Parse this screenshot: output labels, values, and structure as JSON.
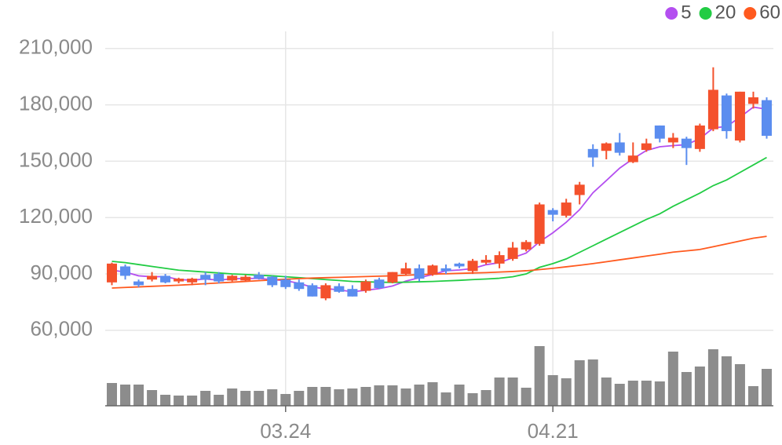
{
  "chart_data": {
    "type": "candlestick",
    "categories": [
      null,
      null,
      null,
      null,
      null,
      null,
      null,
      null,
      null,
      null,
      null,
      null,
      null,
      "03.24",
      null,
      null,
      null,
      null,
      null,
      null,
      null,
      null,
      null,
      null,
      null,
      null,
      null,
      null,
      null,
      null,
      null,
      null,
      null,
      "04.21",
      null,
      null,
      null,
      null,
      null,
      null,
      null,
      null,
      null,
      null,
      null,
      null,
      null,
      null,
      null,
      null
    ],
    "open": [
      85500,
      94000,
      86000,
      87000,
      89000,
      86000,
      85500,
      89500,
      90000,
      86500,
      86500,
      89500,
      88500,
      87000,
      85500,
      84000,
      77000,
      83500,
      82000,
      81000,
      87000,
      85500,
      90000,
      93000,
      89500,
      93000,
      95500,
      91500,
      96000,
      95500,
      98000,
      103000,
      106000,
      124000,
      121000,
      132000,
      156500,
      155500,
      160000,
      149500,
      156000,
      169000,
      160000,
      162000,
      156500,
      167000,
      185000,
      161000,
      180500,
      182500
    ],
    "high": [
      96000,
      95000,
      87000,
      91000,
      90000,
      88000,
      88000,
      91000,
      91000,
      89500,
      89500,
      91000,
      89000,
      89000,
      87000,
      85000,
      85000,
      85000,
      84000,
      87000,
      88000,
      91000,
      96000,
      95000,
      95000,
      95000,
      96000,
      98000,
      100000,
      102000,
      107000,
      108000,
      128000,
      125000,
      130000,
      139000,
      159000,
      160000,
      165000,
      160000,
      162000,
      169000,
      165000,
      163000,
      170000,
      200000,
      186000,
      187000,
      187000,
      184000
    ],
    "low": [
      84000,
      87000,
      83000,
      86000,
      85000,
      85000,
      84000,
      84000,
      85000,
      86000,
      86000,
      87000,
      83000,
      82000,
      81000,
      78000,
      76000,
      80000,
      78000,
      80000,
      82000,
      85000,
      89000,
      86000,
      89000,
      90000,
      93000,
      90000,
      95000,
      93000,
      97000,
      102000,
      105000,
      118000,
      120000,
      127000,
      147000,
      151000,
      153000,
      149000,
      155000,
      160000,
      157000,
      148000,
      155000,
      166000,
      162000,
      160000,
      178000,
      162000
    ],
    "close": [
      95500,
      89000,
      84000,
      89000,
      85500,
      87500,
      87500,
      87000,
      86000,
      89000,
      88500,
      87500,
      84000,
      83000,
      82000,
      78000,
      84000,
      80500,
      78000,
      86000,
      82500,
      91000,
      93000,
      87500,
      94500,
      91500,
      94000,
      97000,
      97500,
      100000,
      104000,
      107000,
      127000,
      121500,
      128000,
      137500,
      152000,
      159500,
      154500,
      153000,
      159500,
      162000,
      162500,
      157000,
      169000,
      188000,
      166000,
      187000,
      184000,
      163500
    ],
    "volume": [
      29,
      27,
      27,
      20,
      14,
      13,
      13,
      19,
      14,
      22,
      19,
      19,
      21,
      15,
      19,
      24,
      24,
      21,
      22,
      24,
      26,
      26,
      22,
      27,
      30,
      17,
      27,
      16,
      20,
      36,
      36,
      23,
      76,
      39,
      35,
      58,
      59,
      36,
      28,
      32,
      32,
      31,
      69,
      43,
      50,
      72,
      63,
      53,
      25,
      47
    ],
    "up_color": "#f4512c",
    "down_color": "#5b8def",
    "volume_color": "#8c8c8c",
    "series": [
      {
        "name": "5",
        "color": "#b44ff0",
        "values": [
          92000,
          91000,
          89000,
          88500,
          88600,
          87000,
          86700,
          87300,
          86700,
          87400,
          87600,
          87600,
          87000,
          86400,
          85000,
          82900,
          82200,
          81500,
          80500,
          81300,
          82200,
          83600,
          86200,
          88000,
          89700,
          91700,
          92100,
          92900,
          94900,
          96000,
          98600,
          101100,
          107100,
          111900,
          117500,
          124200,
          133200,
          139700,
          146300,
          151300,
          155700,
          157700,
          158300,
          158800,
          162000,
          167700,
          168500,
          173400,
          178800,
          177700
        ]
      },
      {
        "name": "20",
        "color": "#22cc44",
        "values": [
          96700,
          96000,
          95000,
          94000,
          93000,
          92000,
          91500,
          91000,
          90500,
          90000,
          89700,
          89300,
          89000,
          88500,
          88000,
          87500,
          87000,
          86500,
          86000,
          85800,
          85600,
          85500,
          85600,
          85800,
          86000,
          86300,
          86600,
          87000,
          87300,
          87700,
          88500,
          90000,
          93500,
          95500,
          98000,
          101500,
          105000,
          108500,
          112000,
          115500,
          119000,
          122000,
          126000,
          129500,
          133000,
          137000,
          140000,
          144000,
          148000,
          152000
        ]
      },
      {
        "name": "60",
        "color": "#ff5a1f",
        "values": [
          82500,
          82800,
          83100,
          83400,
          83700,
          84000,
          84400,
          84800,
          85200,
          85600,
          86000,
          86400,
          86800,
          87200,
          87500,
          87800,
          88000,
          88200,
          88400,
          88600,
          88800,
          89000,
          89300,
          89600,
          89900,
          90100,
          90300,
          90500,
          90700,
          91000,
          91300,
          91700,
          92300,
          93000,
          93800,
          94600,
          95500,
          96500,
          97500,
          98500,
          99500,
          100500,
          101600,
          102300,
          103000,
          104500,
          106000,
          107500,
          109000,
          110000
        ]
      }
    ],
    "ylim": [
      52000,
      217000
    ],
    "yticks": [
      {
        "value": 60000,
        "label": "60,000"
      },
      {
        "value": 90000,
        "label": "90,000"
      },
      {
        "value": 120000,
        "label": "120,000"
      },
      {
        "value": 150000,
        "label": "150,000"
      },
      {
        "value": 180000,
        "label": "180,000"
      },
      {
        "value": 210000,
        "label": "210,000"
      }
    ],
    "grid": true
  }
}
